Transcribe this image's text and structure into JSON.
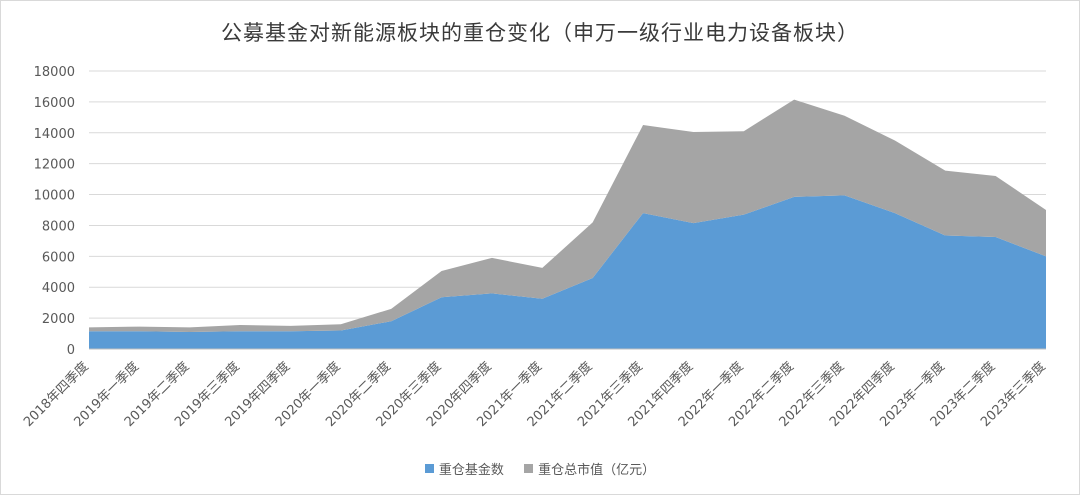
{
  "chart_data": {
    "type": "area",
    "stacked": true,
    "title": "公募基金对新能源板块的重仓变化（申万一级行业电力设备板块）",
    "categories": [
      "2018年四季度",
      "2019年一季度",
      "2019年二季度",
      "2019年三季度",
      "2019年四季度",
      "2020年一季度",
      "2020年二季度",
      "2020年三季度",
      "2020年四季度",
      "2021年一季度",
      "2021年二季度",
      "2021年三季度",
      "2021年四季度",
      "2022年一季度",
      "2022年二季度",
      "2022年三季度",
      "2022年四季度",
      "2023年一季度",
      "2023年二季度",
      "2023年三季度"
    ],
    "series": [
      {
        "name": "重仓基金数",
        "color": "#5b9bd5",
        "values": [
          1150,
          1150,
          1100,
          1150,
          1150,
          1200,
          1800,
          3350,
          3600,
          3250,
          4600,
          8800,
          8150,
          8700,
          9850,
          9950,
          8800,
          7350,
          7250,
          6000
        ]
      },
      {
        "name": "重仓总市值（亿元）",
        "color": "#a5a5a5",
        "values": [
          250,
          300,
          300,
          400,
          350,
          400,
          800,
          1700,
          2300,
          2000,
          3600,
          5700,
          5900,
          5400,
          6300,
          5150,
          4700,
          4200,
          3950,
          3000
        ]
      }
    ],
    "ylim": [
      0,
      18000
    ],
    "yticks": [
      0,
      2000,
      4000,
      6000,
      8000,
      10000,
      12000,
      14000,
      16000,
      18000
    ],
    "grid": true,
    "legend_position": "bottom"
  }
}
